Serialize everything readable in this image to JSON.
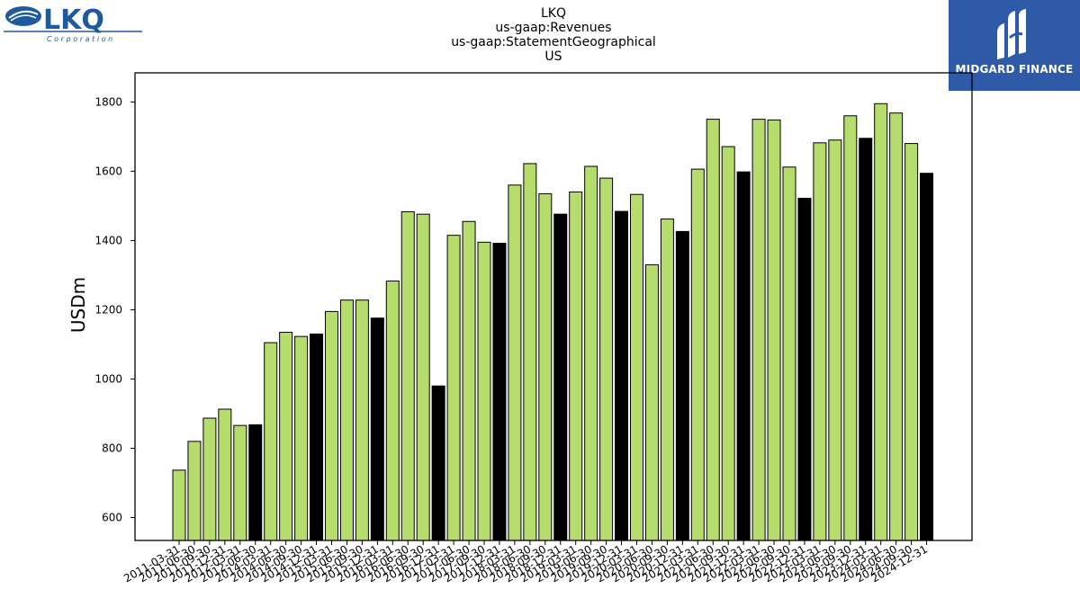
{
  "logos": {
    "left": {
      "name": "LKQ",
      "subtitle": "Corporation",
      "icon": "lkq-logo"
    },
    "right": {
      "name": "MIDGARD FINANCE",
      "icon": "midgard-logo",
      "color": "#2f5aa7"
    }
  },
  "header": {
    "line1": "LKQ",
    "line2": "us-gaap:Revenues",
    "line3": "us-gaap:StatementGeographical",
    "line4": "US"
  },
  "chart_data": {
    "type": "bar",
    "ylabel": "USDm",
    "xlabel": "",
    "ylim": [
      534,
      1884
    ],
    "yticks": [
      600,
      800,
      1000,
      1200,
      1400,
      1600,
      1800
    ],
    "grid": false,
    "colors": {
      "quarter": "#b5dc6c",
      "year_end": "#000000",
      "edge": "#000000"
    },
    "categories": [
      "2011-03-31",
      "2011-06-30",
      "2011-09-30",
      "2011-12-31",
      "2012-03-31",
      "2012-06-30",
      "2014-03-31",
      "2014-06-30",
      "2014-09-30",
      "2014-12-31",
      "2015-03-31",
      "2015-06-30",
      "2015-09-30",
      "2015-12-31",
      "2016-03-31",
      "2016-06-30",
      "2016-09-30",
      "2016-12-31",
      "2017-03-31",
      "2017-06-30",
      "2017-09-30",
      "2017-12-31",
      "2018-03-31",
      "2018-06-30",
      "2018-09-30",
      "2018-12-31",
      "2019-03-31",
      "2019-06-30",
      "2019-09-30",
      "2019-12-31",
      "2020-03-31",
      "2020-06-30",
      "2020-09-30",
      "2020-12-31",
      "2021-03-31",
      "2021-06-30",
      "2021-09-30",
      "2021-12-31",
      "2022-03-31",
      "2022-06-30",
      "2022-09-30",
      "2022-12-31",
      "2023-03-31",
      "2023-06-30",
      "2023-09-30",
      "2023-12-31",
      "2024-03-31",
      "2024-06-30",
      "2024-09-30",
      "2024-12-31"
    ],
    "values": [
      737,
      820,
      887,
      913,
      866,
      868,
      1105,
      1135,
      1123,
      1130,
      1195,
      1228,
      1228,
      1176,
      1283,
      1483,
      1476,
      980,
      1415,
      1455,
      1395,
      1392,
      1560,
      1622,
      1535,
      1476,
      1540,
      1614,
      1580,
      1484,
      1533,
      1330,
      1462,
      1426,
      1606,
      1750,
      1671,
      1598,
      1750,
      1748,
      1612,
      1522,
      1682,
      1690,
      1760,
      1695,
      1795,
      1768,
      1680,
      1594
    ],
    "year_end": [
      false,
      false,
      false,
      false,
      false,
      true,
      false,
      false,
      false,
      true,
      false,
      false,
      false,
      true,
      false,
      false,
      false,
      true,
      false,
      false,
      false,
      true,
      false,
      false,
      false,
      true,
      false,
      false,
      false,
      true,
      false,
      false,
      false,
      true,
      false,
      false,
      false,
      true,
      false,
      false,
      false,
      true,
      false,
      false,
      false,
      true,
      false,
      false,
      false,
      true
    ]
  }
}
